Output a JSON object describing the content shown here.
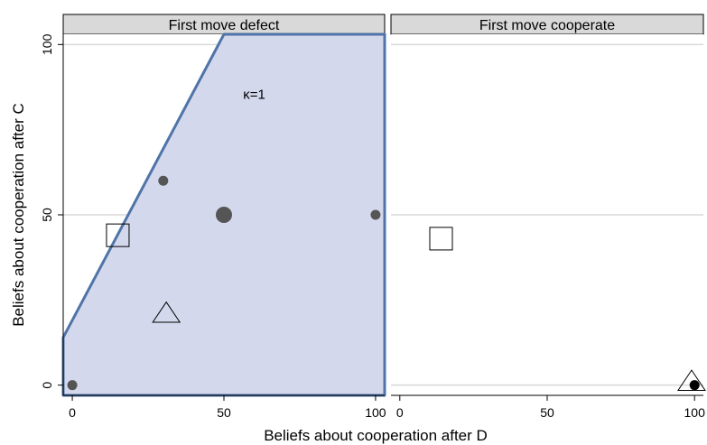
{
  "chart_data": {
    "type": "scatter",
    "xlabel": "Beliefs about cooperation after D",
    "ylabel": "Beliefs about cooperation after C",
    "xlim": [
      -3,
      103
    ],
    "ylim": [
      -3,
      103
    ],
    "x_ticks": [
      0,
      50,
      100
    ],
    "y_ticks": [
      0,
      50,
      100
    ],
    "grid": "horizontal",
    "colors": {
      "region_fill": "#d4d8ec",
      "region_stroke": "#4f74a8",
      "point": "#555555",
      "header": "#d9d9d9"
    },
    "panels": [
      {
        "title": "First move defect",
        "annotation": {
          "text": "κ=1",
          "x": 60,
          "y": 84
        },
        "region": [
          [
            -3,
            -3
          ],
          [
            -3,
            14
          ],
          [
            50,
            103
          ],
          [
            103,
            103
          ],
          [
            103,
            -3
          ]
        ],
        "points": [
          {
            "x": 0,
            "y": 0,
            "marker": "dot",
            "size": "small"
          },
          {
            "x": 30,
            "y": 60,
            "marker": "dot",
            "size": "small"
          },
          {
            "x": 50,
            "y": 50,
            "marker": "dot",
            "size": "large"
          },
          {
            "x": 100,
            "y": 50,
            "marker": "dot",
            "size": "small"
          },
          {
            "x": 15,
            "y": 44,
            "marker": "square",
            "size": "medium"
          },
          {
            "x": 31,
            "y": 21,
            "marker": "triangle",
            "size": "medium"
          }
        ]
      },
      {
        "title": "First move cooperate",
        "points": [
          {
            "x": 14,
            "y": 43,
            "marker": "square",
            "size": "medium"
          },
          {
            "x": 99,
            "y": 1,
            "marker": "triangle",
            "size": "medium"
          },
          {
            "x": 100,
            "y": 0,
            "marker": "dot",
            "size": "small",
            "color": "#000000"
          }
        ]
      }
    ]
  }
}
